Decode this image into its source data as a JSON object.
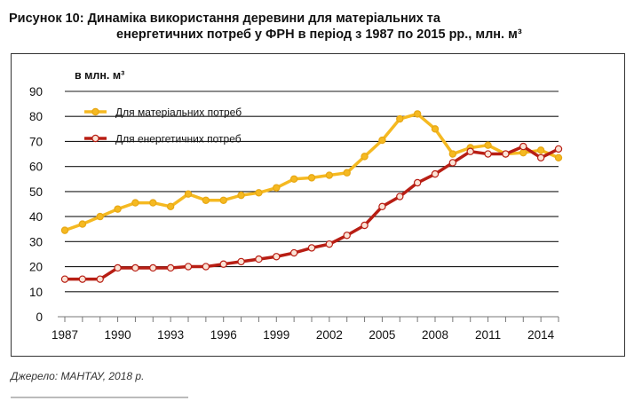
{
  "figure": {
    "title_line1": "Рисунок 10: Динаміка використання деревини для матеріальних та",
    "title_line2": "енергетичних потреб у ФРН в період з 1987 по 2015 рр., млн. м³",
    "source": "Джерело: МАНТАУ, 2018 р."
  },
  "chart_data": {
    "type": "line",
    "ylabel": "в млн. м³",
    "ylim": [
      0,
      90
    ],
    "yticks": [
      0,
      10,
      20,
      30,
      40,
      50,
      60,
      70,
      80,
      90
    ],
    "xlim": [
      1987,
      2015
    ],
    "xticks": [
      1987,
      1990,
      1993,
      1996,
      1999,
      2002,
      2005,
      2008,
      2011,
      2014
    ],
    "grid": true,
    "legend_position": "top-left",
    "x": [
      1987,
      1988,
      1989,
      1990,
      1991,
      1992,
      1993,
      1994,
      1995,
      1996,
      1997,
      1998,
      1999,
      2000,
      2001,
      2002,
      2003,
      2004,
      2005,
      2006,
      2007,
      2008,
      2009,
      2010,
      2011,
      2012,
      2013,
      2014,
      2015
    ],
    "series": [
      {
        "name": "Для матеріальних потреб",
        "color": "#F5B921",
        "marker_fill": "#F5B921",
        "values": [
          34.5,
          37,
          40,
          43,
          45.5,
          45.5,
          44,
          49,
          46.5,
          46.5,
          48.5,
          49.5,
          51.5,
          55,
          55.5,
          56.5,
          57.5,
          64,
          70.5,
          79,
          81,
          75,
          65,
          67.5,
          68.5,
          65,
          65.5,
          66.5,
          63.5
        ]
      },
      {
        "name": "Для енергетичних потреб",
        "color": "#B81E14",
        "marker_fill": "#FBE3D6",
        "values": [
          15,
          15,
          15,
          19.5,
          19.5,
          19.5,
          19.5,
          20,
          20,
          21,
          22,
          23,
          24,
          25.5,
          27.5,
          29,
          32.5,
          36.5,
          44,
          48,
          53.5,
          57,
          61.5,
          66,
          65,
          65,
          68,
          63.5,
          67
        ]
      }
    ]
  }
}
